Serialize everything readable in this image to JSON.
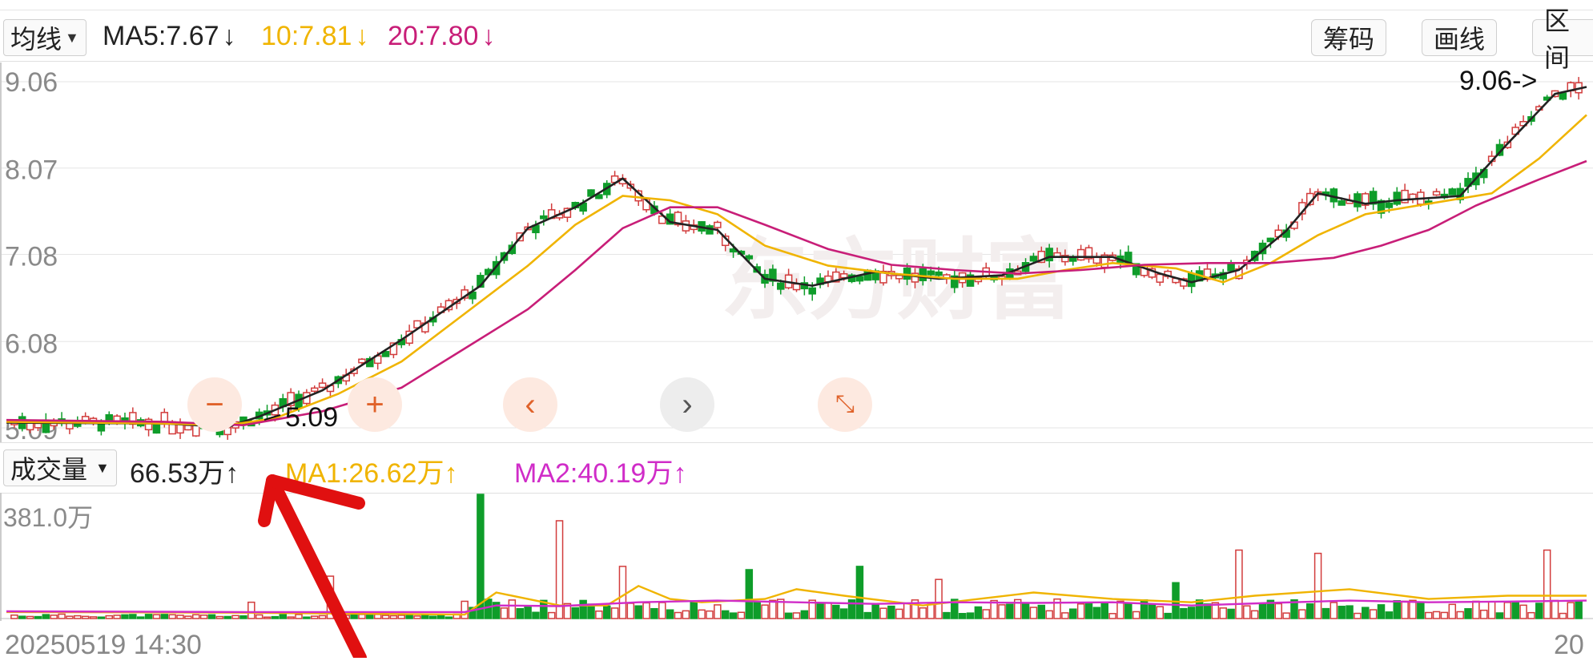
{
  "header": {
    "ma_selector": "均线",
    "ma5": {
      "label": "MA5:7.67",
      "arrow": "↓",
      "color": "#222222"
    },
    "ma10": {
      "label": "10:7.81",
      "arrow": "↓",
      "color": "#f0b400"
    },
    "ma20": {
      "label": "20:7.80",
      "arrow": "↓",
      "color": "#c81e78"
    },
    "buttons": [
      "筹码",
      "画线",
      "区间"
    ]
  },
  "volume_header": {
    "selector": "成交量",
    "vol": {
      "label": "66.53万",
      "arrow": "↑",
      "color": "#222222"
    },
    "ma1": {
      "label": "MA1:26.62万",
      "arrow": "↑",
      "color": "#f0b400"
    },
    "ma2": {
      "label": "MA2:40.19万",
      "arrow": "↑",
      "color": "#d02cc8"
    }
  },
  "controls": [
    "zoom-out",
    "zoom-in",
    "previous",
    "next",
    "collapse"
  ],
  "dates": {
    "start": "20250519 14:30",
    "end_partial": "20"
  },
  "annotations": {
    "high_marker": "9.06->",
    "low_marker": "5.09"
  },
  "colors": {
    "up": "#d23c3c",
    "down": "#0f9d2a",
    "ma5": "#222222",
    "ma10": "#f0b400",
    "ma20": "#c81e78",
    "vol_ma2": "#d02cc8"
  },
  "chart_data": [
    {
      "type": "candlestick",
      "y_ticks": [
        "9.06",
        "8.07",
        "7.08",
        "6.08",
        "5.09"
      ],
      "ylim": [
        5.09,
        9.06
      ],
      "x_range": [
        0,
        200
      ],
      "series": [
        {
          "name": "MA5",
          "points": [
            [
              0,
              5.15
            ],
            [
              20,
              5.14
            ],
            [
              28,
              5.1
            ],
            [
              32,
              5.22
            ],
            [
              40,
              5.52
            ],
            [
              50,
              6.1
            ],
            [
              60,
              6.72
            ],
            [
              66,
              7.38
            ],
            [
              72,
              7.62
            ],
            [
              78,
              7.95
            ],
            [
              84,
              7.45
            ],
            [
              90,
              7.36
            ],
            [
              96,
              6.8
            ],
            [
              102,
              6.72
            ],
            [
              110,
              6.88
            ],
            [
              118,
              6.8
            ],
            [
              126,
              6.84
            ],
            [
              132,
              7.05
            ],
            [
              140,
              7.05
            ],
            [
              146,
              6.86
            ],
            [
              150,
              6.76
            ],
            [
              156,
              6.9
            ],
            [
              162,
              7.35
            ],
            [
              166,
              7.78
            ],
            [
              172,
              7.66
            ],
            [
              176,
              7.7
            ],
            [
              184,
              7.75
            ],
            [
              190,
              8.35
            ],
            [
              196,
              8.92
            ],
            [
              200,
              9.0
            ]
          ]
        },
        {
          "name": "MA10",
          "points": [
            [
              0,
              5.16
            ],
            [
              20,
              5.14
            ],
            [
              28,
              5.12
            ],
            [
              34,
              5.2
            ],
            [
              42,
              5.48
            ],
            [
              50,
              5.85
            ],
            [
              58,
              6.4
            ],
            [
              66,
              6.95
            ],
            [
              72,
              7.42
            ],
            [
              78,
              7.75
            ],
            [
              84,
              7.7
            ],
            [
              90,
              7.54
            ],
            [
              96,
              7.18
            ],
            [
              104,
              6.95
            ],
            [
              112,
              6.86
            ],
            [
              120,
              6.8
            ],
            [
              128,
              6.8
            ],
            [
              134,
              6.9
            ],
            [
              140,
              6.98
            ],
            [
              148,
              6.92
            ],
            [
              154,
              6.76
            ],
            [
              160,
              6.98
            ],
            [
              166,
              7.3
            ],
            [
              172,
              7.54
            ],
            [
              180,
              7.66
            ],
            [
              188,
              7.78
            ],
            [
              194,
              8.18
            ],
            [
              200,
              8.68
            ]
          ]
        },
        {
          "name": "MA20",
          "points": [
            [
              0,
              5.18
            ],
            [
              20,
              5.16
            ],
            [
              30,
              5.12
            ],
            [
              40,
              5.28
            ],
            [
              50,
              5.55
            ],
            [
              58,
              6.0
            ],
            [
              66,
              6.45
            ],
            [
              72,
              6.9
            ],
            [
              78,
              7.38
            ],
            [
              84,
              7.62
            ],
            [
              90,
              7.62
            ],
            [
              96,
              7.42
            ],
            [
              104,
              7.14
            ],
            [
              112,
              6.96
            ],
            [
              120,
              6.9
            ],
            [
              128,
              6.86
            ],
            [
              136,
              6.9
            ],
            [
              144,
              6.96
            ],
            [
              152,
              6.98
            ],
            [
              160,
              6.98
            ],
            [
              168,
              7.04
            ],
            [
              174,
              7.18
            ],
            [
              180,
              7.36
            ],
            [
              186,
              7.64
            ],
            [
              194,
              7.94
            ],
            [
              200,
              8.15
            ]
          ]
        }
      ]
    },
    {
      "type": "bar",
      "y_ticks": [
        "381.0万"
      ],
      "ymax": 381.0,
      "unit": "万",
      "series": [
        {
          "name": "MA1",
          "points": [
            [
              0,
              20
            ],
            [
              30,
              18
            ],
            [
              58,
              12
            ],
            [
              62,
              80
            ],
            [
              70,
              40
            ],
            [
              76,
              40
            ],
            [
              80,
              100
            ],
            [
              84,
              60
            ],
            [
              88,
              50
            ],
            [
              96,
              60
            ],
            [
              100,
              90
            ],
            [
              106,
              70
            ],
            [
              116,
              40
            ],
            [
              130,
              80
            ],
            [
              140,
              60
            ],
            [
              150,
              50
            ],
            [
              158,
              70
            ],
            [
              170,
              90
            ],
            [
              180,
              60
            ],
            [
              190,
              70
            ],
            [
              196,
              70
            ],
            [
              200,
              70
            ]
          ]
        },
        {
          "name": "MA2",
          "points": [
            [
              0,
              22
            ],
            [
              30,
              20
            ],
            [
              58,
              20
            ],
            [
              62,
              40
            ],
            [
              70,
              38
            ],
            [
              80,
              50
            ],
            [
              90,
              55
            ],
            [
              100,
              50
            ],
            [
              110,
              45
            ],
            [
              120,
              50
            ],
            [
              130,
              48
            ],
            [
              140,
              50
            ],
            [
              150,
              40
            ],
            [
              160,
              48
            ],
            [
              170,
              55
            ],
            [
              180,
              50
            ],
            [
              190,
              52
            ],
            [
              200,
              55
            ]
          ]
        }
      ]
    }
  ]
}
